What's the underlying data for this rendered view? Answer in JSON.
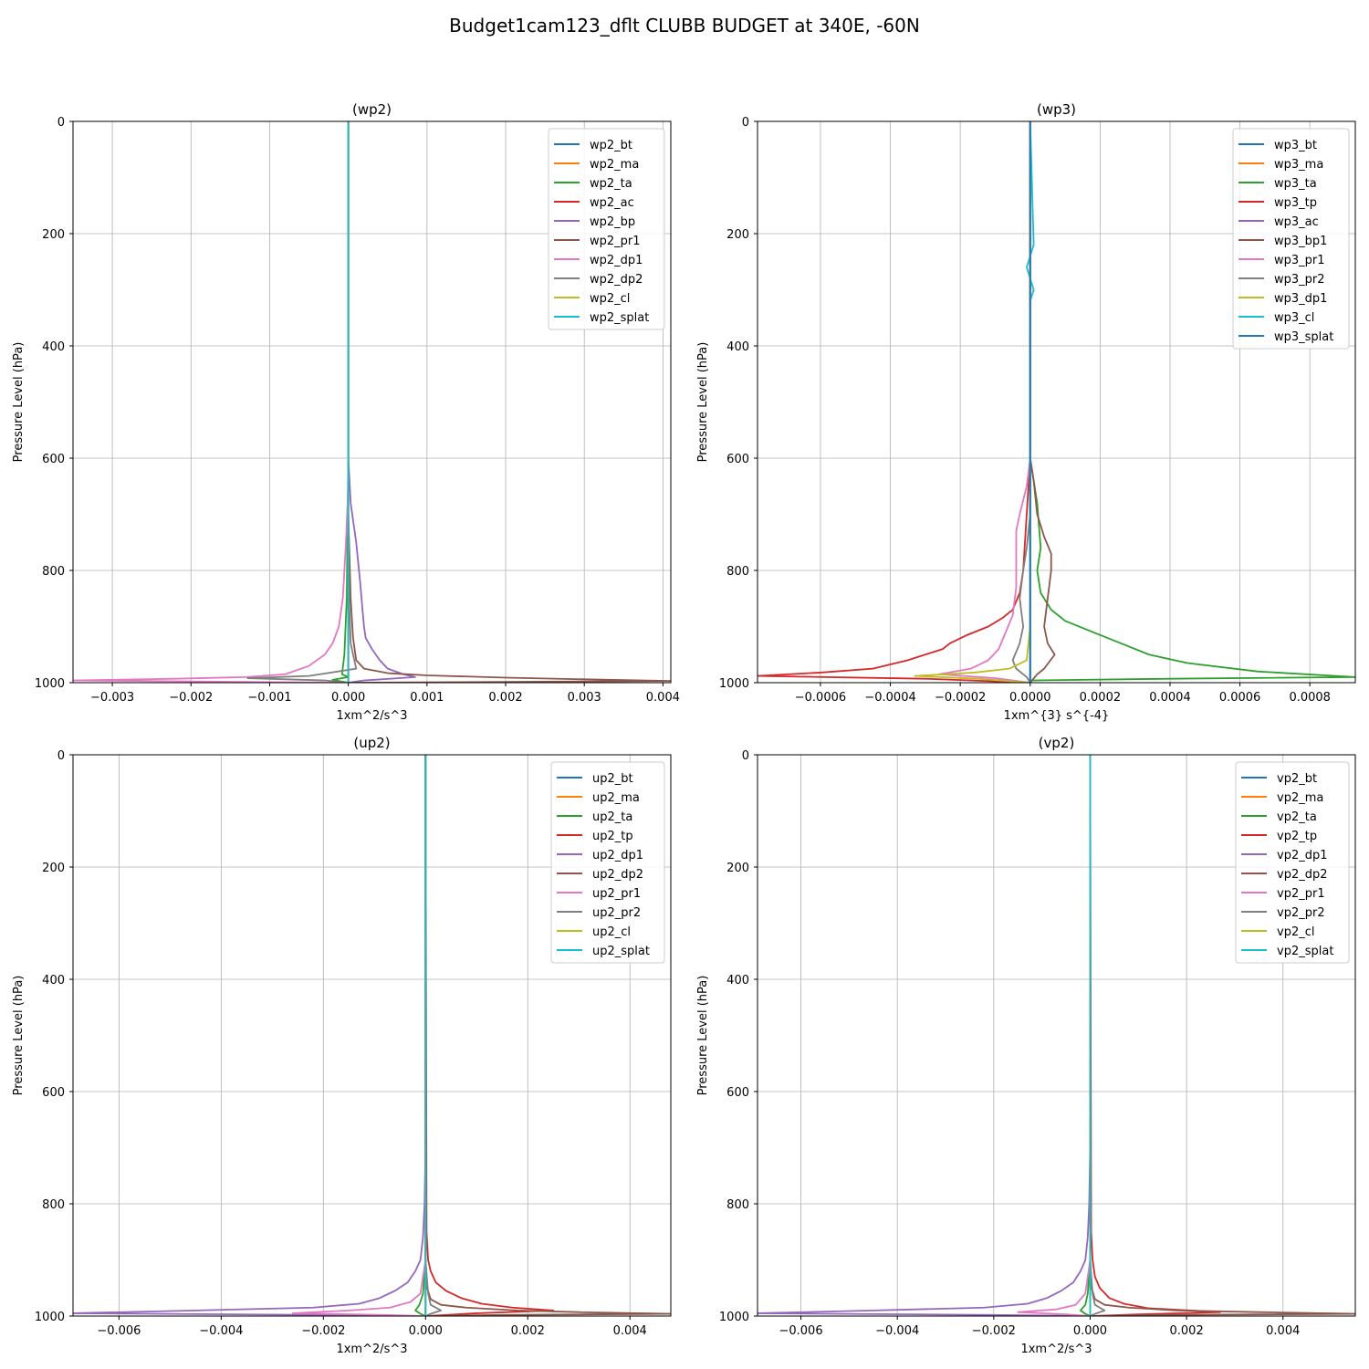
{
  "suptitle": "Budget1cam123_dflt CLUBB BUDGET at 340E, -60N",
  "colors": [
    "#1f77b4",
    "#ff7f0e",
    "#2ca02c",
    "#d62728",
    "#9467bd",
    "#8c564b",
    "#e377c2",
    "#7f7f7f",
    "#bcbd22",
    "#17becf"
  ],
  "chart_data": [
    {
      "type": "line",
      "title": "(wp2)",
      "xlabel": "1xm^2/s^3",
      "ylabel": "Pressure Level (hPa)",
      "xlim": [
        -0.0035,
        0.0041
      ],
      "ylim": [
        1000,
        0
      ],
      "grid": true,
      "legend": "top-right",
      "xticks": [
        -0.003,
        -0.002,
        -0.001,
        0.0,
        0.001,
        0.002,
        0.003,
        0.004
      ],
      "xtick_labels": [
        "−0.003",
        "−0.002",
        "−0.001",
        "0.000",
        "0.001",
        "0.002",
        "0.003",
        "0.004"
      ],
      "yticks": [
        0,
        200,
        400,
        600,
        800,
        1000
      ],
      "ytick_labels": [
        "0",
        "200",
        "400",
        "600",
        "800",
        "1000"
      ],
      "series": [
        {
          "name": "wp2_bt",
          "x": [
            0,
            0
          ],
          "y": [
            0,
            1000
          ]
        },
        {
          "name": "wp2_ma",
          "x": [
            0,
            0
          ],
          "y": [
            0,
            1000
          ]
        },
        {
          "name": "wp2_ta",
          "x": [
            0,
            0,
            -2e-05,
            -5e-05,
            -8e-05,
            0.0,
            -0.0002,
            0.0
          ],
          "y": [
            0,
            600,
            850,
            950,
            985,
            990,
            995,
            1000
          ]
        },
        {
          "name": "wp2_ac",
          "x": [
            0,
            0,
            0
          ],
          "y": [
            0,
            990,
            1000
          ]
        },
        {
          "name": "wp2_bp",
          "x": [
            0,
            0,
            3e-05,
            0.0001,
            0.00015,
            0.00018,
            0.0002,
            0.00022,
            0.0003,
            0.0004,
            0.0005,
            0.0007,
            0.00085,
            0.0002,
            0.0
          ],
          "y": [
            0,
            600,
            680,
            750,
            820,
            870,
            900,
            920,
            940,
            960,
            975,
            985,
            990,
            996,
            1000
          ]
        },
        {
          "name": "wp2_pr1",
          "x": [
            0,
            0,
            3e-05,
            6e-05,
            0.0001,
            0.0002,
            0.0005,
            0.001,
            0.002,
            0.003,
            0.0041,
            0.0015,
            0.0
          ],
          "y": [
            0,
            700,
            850,
            920,
            960,
            975,
            983,
            987,
            991,
            994,
            997,
            999,
            1000
          ]
        },
        {
          "name": "wp2_dp1",
          "x": [
            0,
            0,
            -3e-05,
            -7e-05,
            -0.00012,
            -0.0002,
            -0.0003,
            -0.0005,
            -0.0008,
            -0.0013,
            -0.0022,
            -0.0035,
            -0.001,
            0.0
          ],
          "y": [
            0,
            650,
            750,
            850,
            900,
            930,
            950,
            970,
            985,
            990,
            993,
            996,
            999,
            1000
          ]
        },
        {
          "name": "wp2_dp2",
          "x": [
            0,
            0,
            1e-05,
            3e-05,
            0.0001,
            -0.0005,
            -0.00128,
            -0.0003,
            0.0
          ],
          "y": [
            0,
            700,
            850,
            930,
            975,
            988,
            992,
            996,
            1000
          ]
        },
        {
          "name": "wp2_cl",
          "x": [
            0,
            0
          ],
          "y": [
            0,
            1000
          ]
        },
        {
          "name": "wp2_splat",
          "x": [
            0,
            0,
            0
          ],
          "y": [
            0,
            700,
            1000
          ]
        }
      ]
    },
    {
      "type": "line",
      "title": "(wp3)",
      "xlabel": "1xm^{3} s^{-4}",
      "ylabel": "Pressure Level (hPa)",
      "xlim": [
        -0.00078,
        0.00093
      ],
      "ylim": [
        1000,
        0
      ],
      "grid": true,
      "legend": "top-right",
      "xticks": [
        -0.0006,
        -0.0004,
        -0.0002,
        0.0,
        0.0002,
        0.0004,
        0.0006,
        0.0008
      ],
      "xtick_labels": [
        "−0.0006",
        "−0.0004",
        "−0.0002",
        "0.0000",
        "0.0002",
        "0.0004",
        "0.0006",
        "0.0008"
      ],
      "yticks": [
        0,
        200,
        400,
        600,
        800,
        1000
      ],
      "ytick_labels": [
        "0",
        "200",
        "400",
        "600",
        "800",
        "1000"
      ],
      "series": [
        {
          "name": "wp3_bt",
          "x": [
            0,
            0
          ],
          "y": [
            0,
            1000
          ]
        },
        {
          "name": "wp3_ma",
          "x": [
            0,
            0
          ],
          "y": [
            0,
            1000
          ]
        },
        {
          "name": "wp3_ta",
          "x": [
            0,
            0,
            2e-05,
            3e-05,
            2e-05,
            3e-05,
            6e-05,
            0.0001,
            0.00018,
            0.00026,
            0.00034,
            0.00045,
            0.00065,
            0.00093,
            0.0004,
            0.0,
            0.0
          ],
          "y": [
            0,
            600,
            680,
            760,
            800,
            840,
            870,
            890,
            910,
            930,
            950,
            965,
            980,
            990,
            993,
            996,
            1000
          ]
        },
        {
          "name": "wp3_tp",
          "x": [
            0,
            0,
            -1e-05,
            -2e-05,
            -3e-05,
            -5e-05,
            -8e-05,
            -0.00012,
            -0.00018,
            -0.00023,
            -0.00025,
            -0.00035,
            -0.00045,
            -0.0006,
            -0.00078,
            -0.0003,
            0.0
          ],
          "y": [
            0,
            600,
            700,
            800,
            840,
            870,
            885,
            900,
            915,
            930,
            940,
            960,
            975,
            982,
            988,
            993,
            1000
          ]
        },
        {
          "name": "wp3_ac",
          "x": [
            0,
            0
          ],
          "y": [
            0,
            1000
          ]
        },
        {
          "name": "wp3_bp1",
          "x": [
            0,
            0,
            1e-05,
            2e-05,
            4e-05,
            6e-05,
            6e-05,
            5e-05,
            4e-05,
            5e-05,
            7e-05,
            4e-05,
            2e-05,
            0.0
          ],
          "y": [
            0,
            600,
            640,
            700,
            740,
            770,
            800,
            850,
            900,
            930,
            950,
            975,
            985,
            1000
          ]
        },
        {
          "name": "wp3_pr1",
          "x": [
            0,
            0,
            -1e-05,
            -3e-05,
            -4e-05,
            -4e-05,
            -4e-05,
            -5e-05,
            -7e-05,
            -9e-05,
            -0.00012,
            -0.00017,
            -0.00026,
            -0.0001,
            0.0
          ],
          "y": [
            0,
            600,
            650,
            700,
            730,
            770,
            830,
            880,
            910,
            940,
            960,
            975,
            985,
            992,
            1000
          ]
        },
        {
          "name": "wp3_pr2",
          "x": [
            0,
            0,
            -1e-05,
            -2e-05,
            -3e-05,
            -2e-05,
            -3e-05,
            -5e-05,
            -4e-05,
            -1e-05,
            0.0
          ],
          "y": [
            0,
            700,
            760,
            800,
            850,
            900,
            930,
            960,
            975,
            990,
            1000
          ]
        },
        {
          "name": "wp3_dp1",
          "x": [
            0,
            0,
            -1e-05,
            -6e-05,
            -0.00016,
            -0.00033,
            -0.00015,
            0.0
          ],
          "y": [
            0,
            900,
            960,
            975,
            982,
            988,
            993,
            1000
          ]
        },
        {
          "name": "wp3_cl",
          "x": [
            0,
            1e-05,
            0,
            -1e-05,
            1e-05,
            0,
            0
          ],
          "y": [
            0,
            220,
            240,
            260,
            300,
            320,
            1000
          ]
        },
        {
          "name": "wp3_splat",
          "x": [
            0,
            0
          ],
          "y": [
            0,
            1000
          ]
        }
      ]
    },
    {
      "type": "line",
      "title": "(up2)",
      "xlabel": "1xm^2/s^3",
      "ylabel": "Pressure Level (hPa)",
      "xlim": [
        -0.0069,
        0.0048
      ],
      "ylim": [
        1000,
        0
      ],
      "grid": true,
      "legend": "top-right",
      "xticks": [
        -0.006,
        -0.004,
        -0.002,
        0.0,
        0.002,
        0.004
      ],
      "xtick_labels": [
        "−0.006",
        "−0.004",
        "−0.002",
        "0.000",
        "0.002",
        "0.004"
      ],
      "yticks": [
        0,
        200,
        400,
        600,
        800,
        1000
      ],
      "ytick_labels": [
        "0",
        "200",
        "400",
        "600",
        "800",
        "1000"
      ],
      "series": [
        {
          "name": "up2_bt",
          "x": [
            0,
            0
          ],
          "y": [
            0,
            1000
          ]
        },
        {
          "name": "up2_ma",
          "x": [
            0,
            0
          ],
          "y": [
            0,
            1000
          ]
        },
        {
          "name": "up2_ta",
          "x": [
            0,
            0,
            -5e-05,
            -0.00012,
            -0.0002,
            -0.0001,
            0.0
          ],
          "y": [
            0,
            900,
            960,
            980,
            990,
            996,
            1000
          ]
        },
        {
          "name": "up2_tp",
          "x": [
            0,
            2e-05,
            5e-05,
            0.0001,
            0.0002,
            0.0004,
            0.0007,
            0.0011,
            0.0017,
            0.0025,
            0.001,
            0.0
          ],
          "y": [
            0,
            850,
            900,
            920,
            940,
            955,
            968,
            978,
            985,
            990,
            995,
            1000
          ]
        },
        {
          "name": "up2_dp1",
          "x": [
            0,
            0,
            -2e-05,
            -5e-05,
            -0.0001,
            -0.0002,
            -0.00035,
            -0.0006,
            -0.0009,
            -0.0013,
            -0.0022,
            -0.0045,
            -0.0069,
            -0.002,
            0.0
          ],
          "y": [
            0,
            700,
            800,
            860,
            900,
            920,
            940,
            955,
            968,
            978,
            985,
            990,
            995,
            998,
            1000
          ]
        },
        {
          "name": "up2_dp2",
          "x": [
            0,
            0,
            3e-05,
            0.0001,
            0.0003,
            0.0008,
            0.0018,
            0.003,
            0.0048,
            0.0015,
            0.0
          ],
          "y": [
            0,
            900,
            950,
            970,
            980,
            985,
            990,
            993,
            996,
            998,
            1000
          ]
        },
        {
          "name": "up2_pr1",
          "x": [
            0,
            0,
            -0.0001,
            -0.0003,
            -0.0007,
            -0.0015,
            -0.0026,
            -0.0008,
            0.0
          ],
          "y": [
            0,
            900,
            960,
            975,
            985,
            990,
            995,
            998,
            1000
          ]
        },
        {
          "name": "up2_pr2",
          "x": [
            0,
            0,
            5e-05,
            0.0001,
            0.0003,
            0.0001,
            0.0
          ],
          "y": [
            0,
            900,
            960,
            980,
            990,
            996,
            1000
          ]
        },
        {
          "name": "up2_cl",
          "x": [
            0,
            0
          ],
          "y": [
            0,
            1000
          ]
        },
        {
          "name": "up2_splat",
          "x": [
            0,
            0,
            0
          ],
          "y": [
            0,
            700,
            1000
          ]
        }
      ]
    },
    {
      "type": "line",
      "title": "(vp2)",
      "xlabel": "1xm^2/s^3",
      "ylabel": "Pressure Level (hPa)",
      "xlim": [
        -0.0069,
        0.0055
      ],
      "ylim": [
        1000,
        0
      ],
      "grid": true,
      "legend": "top-right",
      "xticks": [
        -0.006,
        -0.004,
        -0.002,
        0.0,
        0.002,
        0.004
      ],
      "xtick_labels": [
        "−0.006",
        "−0.004",
        "−0.002",
        "0.000",
        "0.002",
        "0.004"
      ],
      "yticks": [
        0,
        200,
        400,
        600,
        800,
        1000
      ],
      "ytick_labels": [
        "0",
        "200",
        "400",
        "600",
        "800",
        "1000"
      ],
      "series": [
        {
          "name": "vp2_bt",
          "x": [
            0,
            0
          ],
          "y": [
            0,
            1000
          ]
        },
        {
          "name": "vp2_ma",
          "x": [
            0,
            0
          ],
          "y": [
            0,
            1000
          ]
        },
        {
          "name": "vp2_ta",
          "x": [
            0,
            0,
            -5e-05,
            -0.0001,
            -0.0002,
            -0.0001,
            0.0
          ],
          "y": [
            0,
            900,
            960,
            980,
            990,
            996,
            1000
          ]
        },
        {
          "name": "vp2_tp",
          "x": [
            0,
            2e-05,
            5e-05,
            0.0001,
            0.0002,
            0.0004,
            0.0007,
            0.0012,
            0.0027,
            0.001,
            0.0
          ],
          "y": [
            0,
            850,
            900,
            930,
            950,
            968,
            978,
            986,
            993,
            997,
            1000
          ]
        },
        {
          "name": "vp2_dp1",
          "x": [
            0,
            0,
            -2e-05,
            -5e-05,
            -0.0001,
            -0.0002,
            -0.00035,
            -0.0006,
            -0.0009,
            -0.0013,
            -0.0022,
            -0.0045,
            -0.0069,
            -0.002,
            0.0
          ],
          "y": [
            0,
            700,
            800,
            860,
            900,
            920,
            940,
            955,
            968,
            978,
            985,
            990,
            995,
            998,
            1000
          ]
        },
        {
          "name": "vp2_dp2",
          "x": [
            0,
            0,
            3e-05,
            0.0001,
            0.0003,
            0.0008,
            0.0018,
            0.0035,
            0.0055,
            0.0015,
            0.0
          ],
          "y": [
            0,
            900,
            950,
            970,
            980,
            985,
            990,
            993,
            996,
            998,
            1000
          ]
        },
        {
          "name": "vp2_pr1",
          "x": [
            0,
            0,
            -0.0001,
            -0.0003,
            -0.0007,
            -0.0015,
            -0.0005,
            0.0
          ],
          "y": [
            0,
            900,
            960,
            980,
            988,
            993,
            997,
            1000
          ]
        },
        {
          "name": "vp2_pr2",
          "x": [
            0,
            0,
            5e-05,
            0.0001,
            0.0003,
            0.0001,
            0.0
          ],
          "y": [
            0,
            900,
            960,
            980,
            990,
            996,
            1000
          ]
        },
        {
          "name": "vp2_cl",
          "x": [
            0,
            0
          ],
          "y": [
            0,
            1000
          ]
        },
        {
          "name": "vp2_splat",
          "x": [
            0,
            0,
            0
          ],
          "y": [
            0,
            700,
            1000
          ]
        }
      ]
    }
  ]
}
